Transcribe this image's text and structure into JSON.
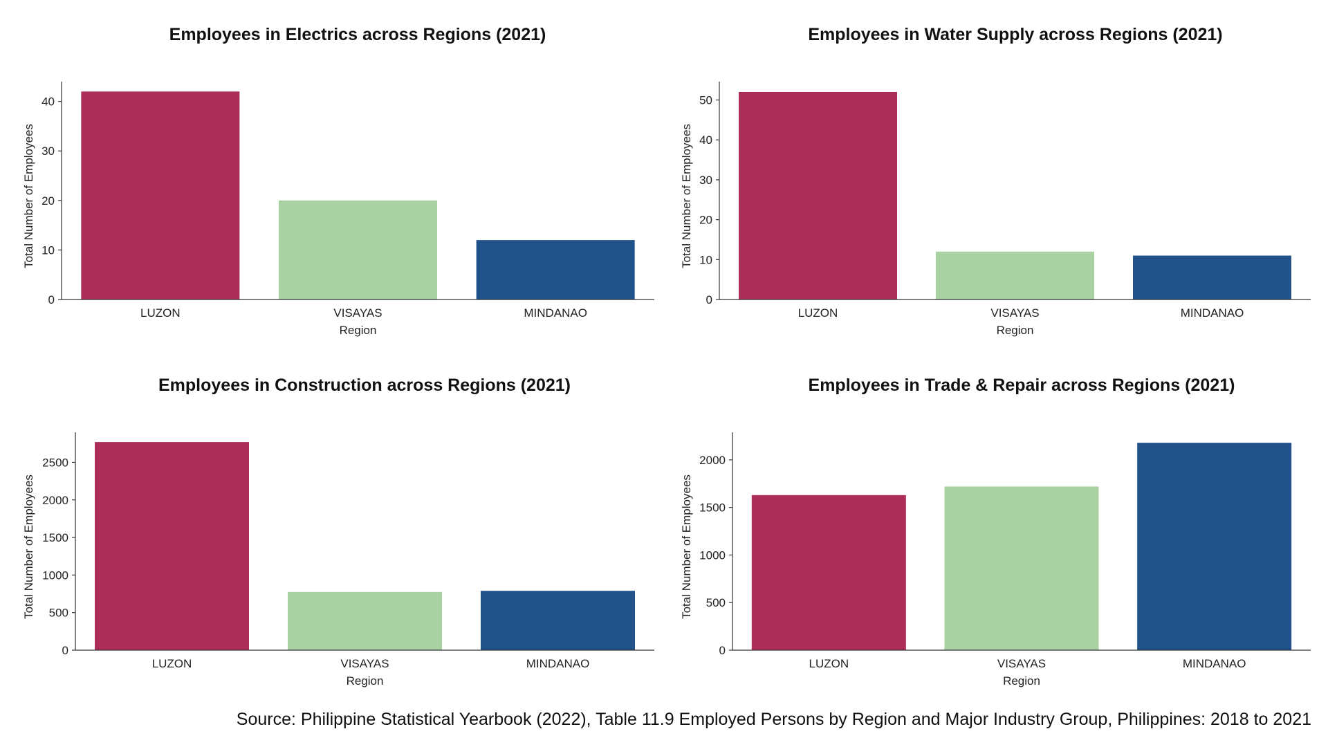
{
  "colors": {
    "LUZON": "#ad2f59",
    "VISAYAS": "#a9d0a1",
    "MINDANAO": "#21528a"
  },
  "source_note": "Source: Philippine Statistical Yearbook (2022), Table 11.9 Employed Persons by Region and Major Industry Group, Philippines: 2018 to 2021",
  "chart_data": [
    {
      "type": "bar",
      "title": "Employees in Electrics across Regions (2021)",
      "xlabel": "Region",
      "ylabel": "Total Number of Employees",
      "categories": [
        "LUZON",
        "VISAYAS",
        "MINDANAO"
      ],
      "values": [
        42,
        20,
        12
      ],
      "ylim": [
        0,
        44
      ],
      "yticks": [
        0,
        10,
        20,
        30,
        40
      ]
    },
    {
      "type": "bar",
      "title": "Employees in Water Supply across Regions (2021)",
      "xlabel": "Region",
      "ylabel": "Total Number of Employees",
      "categories": [
        "LUZON",
        "VISAYAS",
        "MINDANAO"
      ],
      "values": [
        52,
        12,
        11
      ],
      "ylim": [
        0,
        54.6
      ],
      "yticks": [
        0,
        10,
        20,
        30,
        40,
        50
      ]
    },
    {
      "type": "bar",
      "title": "Employees in Construction across Regions (2021)",
      "xlabel": "Region",
      "ylabel": "Total Number of Employees",
      "categories": [
        "LUZON",
        "VISAYAS",
        "MINDANAO"
      ],
      "values": [
        2770,
        775,
        790
      ],
      "ylim": [
        0,
        2900
      ],
      "yticks": [
        0,
        500,
        1000,
        1500,
        2000,
        2500
      ]
    },
    {
      "type": "bar",
      "title": "Employees in Trade & Repair across Regions (2021)",
      "xlabel": "Region",
      "ylabel": "Total Number of Employees",
      "categories": [
        "LUZON",
        "VISAYAS",
        "MINDANAO"
      ],
      "values": [
        1630,
        1720,
        2180
      ],
      "ylim": [
        0,
        2290
      ],
      "yticks": [
        0,
        500,
        1000,
        1500,
        2000
      ]
    }
  ]
}
